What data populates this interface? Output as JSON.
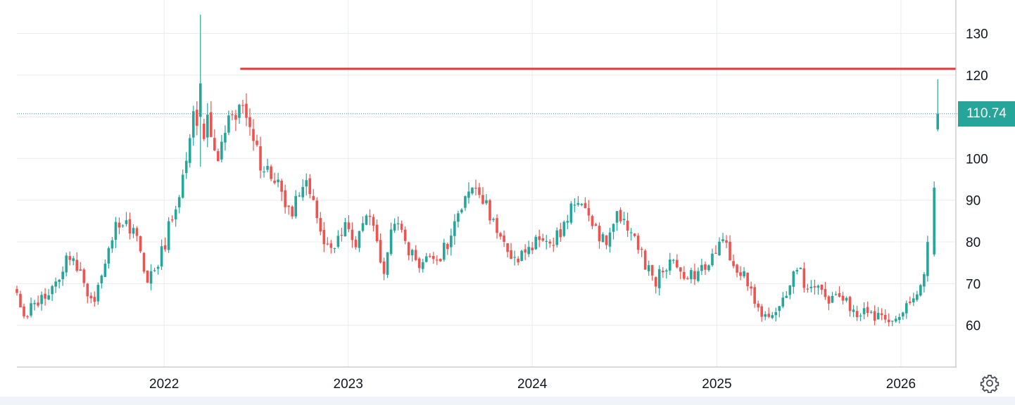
{
  "chart_data": {
    "type": "candlestick",
    "title": "",
    "xlabel": "",
    "ylabel": "",
    "x_range": [
      "2021-03-15",
      "2026-04-20"
    ],
    "y_range": [
      50,
      138
    ],
    "x_ticks": [
      {
        "label": "2022",
        "date": "2022-01-01"
      },
      {
        "label": "2023",
        "date": "2023-01-01"
      },
      {
        "label": "2024",
        "date": "2024-01-01"
      },
      {
        "label": "2025",
        "date": "2025-01-01"
      },
      {
        "label": "2026",
        "date": "2026-01-01"
      }
    ],
    "y_ticks": [
      60,
      70,
      80,
      90,
      100,
      110,
      120,
      130
    ],
    "grid": true,
    "last_price": 110.74,
    "last_price_label": "110.74",
    "horizontal_line": {
      "value": 121.5,
      "from": "2022-06-01",
      "to": "2026-04-20"
    },
    "colors": {
      "up": "#26a69a",
      "down": "#ef5350",
      "level_line": "#e53935",
      "price_line": "#26a69a",
      "grid": "#e9ecef",
      "axis": "#b2b5be"
    },
    "path": [
      [
        "2021-03-15",
        69
      ],
      [
        "2021-04-05",
        62
      ],
      [
        "2021-05-01",
        66
      ],
      [
        "2021-06-01",
        68
      ],
      [
        "2021-06-25",
        75
      ],
      [
        "2021-07-10",
        77
      ],
      [
        "2021-08-01",
        70
      ],
      [
        "2021-08-20",
        65
      ],
      [
        "2021-09-10",
        75
      ],
      [
        "2021-10-01",
        83
      ],
      [
        "2021-10-20",
        86
      ],
      [
        "2021-11-15",
        80
      ],
      [
        "2021-12-05",
        69
      ],
      [
        "2021-12-25",
        75
      ],
      [
        "2022-01-10",
        80
      ],
      [
        "2022-02-01",
        90
      ],
      [
        "2022-02-20",
        97
      ],
      [
        "2022-03-08",
        113
      ],
      [
        "2022-03-20",
        103
      ],
      [
        "2022-04-05",
        110
      ],
      [
        "2022-04-25",
        100
      ],
      [
        "2022-05-15",
        110
      ],
      [
        "2022-06-01",
        108
      ],
      [
        "2022-06-12",
        115
      ],
      [
        "2022-06-22",
        110
      ],
      [
        "2022-07-05",
        106
      ],
      [
        "2022-07-20",
        98
      ],
      [
        "2022-08-05",
        97
      ],
      [
        "2022-08-25",
        93
      ],
      [
        "2022-09-15",
        86
      ],
      [
        "2022-10-01",
        92
      ],
      [
        "2022-10-15",
        96
      ],
      [
        "2022-11-01",
        88
      ],
      [
        "2022-11-20",
        81
      ],
      [
        "2022-12-10",
        79
      ],
      [
        "2023-01-05",
        84
      ],
      [
        "2023-01-25",
        80
      ],
      [
        "2023-02-15",
        87
      ],
      [
        "2023-03-05",
        80
      ],
      [
        "2023-03-20",
        73
      ],
      [
        "2023-04-10",
        86
      ],
      [
        "2023-04-30",
        80
      ],
      [
        "2023-05-25",
        74
      ],
      [
        "2023-06-15",
        76
      ],
      [
        "2023-07-05",
        76
      ],
      [
        "2023-07-25",
        80
      ],
      [
        "2023-08-20",
        87
      ],
      [
        "2023-09-10",
        93
      ],
      [
        "2023-09-30",
        91
      ],
      [
        "2023-10-20",
        86
      ],
      [
        "2023-11-15",
        80
      ],
      [
        "2023-12-05",
        75
      ],
      [
        "2024-01-01",
        78
      ],
      [
        "2024-01-25",
        81
      ],
      [
        "2024-02-20",
        80
      ],
      [
        "2024-03-15",
        84
      ],
      [
        "2024-04-05",
        91
      ],
      [
        "2024-04-25",
        86
      ],
      [
        "2024-05-15",
        82
      ],
      [
        "2024-06-05",
        80
      ],
      [
        "2024-06-25",
        86
      ],
      [
        "2024-07-20",
        82
      ],
      [
        "2024-08-15",
        76
      ],
      [
        "2024-09-05",
        70
      ],
      [
        "2024-09-25",
        74
      ],
      [
        "2024-10-15",
        75
      ],
      [
        "2024-11-10",
        72
      ],
      [
        "2024-12-05",
        73
      ],
      [
        "2025-01-01",
        76
      ],
      [
        "2025-01-20",
        81
      ],
      [
        "2025-02-10",
        75
      ],
      [
        "2025-03-05",
        72
      ],
      [
        "2025-03-30",
        64
      ],
      [
        "2025-04-20",
        62
      ],
      [
        "2025-05-10",
        65
      ],
      [
        "2025-06-01",
        68
      ],
      [
        "2025-06-20",
        76
      ],
      [
        "2025-07-05",
        67
      ],
      [
        "2025-07-25",
        69
      ],
      [
        "2025-08-20",
        66
      ],
      [
        "2025-09-10",
        68
      ],
      [
        "2025-10-05",
        63
      ],
      [
        "2025-10-30",
        63
      ],
      [
        "2025-11-25",
        62
      ],
      [
        "2025-12-15",
        60
      ],
      [
        "2026-01-05",
        61
      ],
      [
        "2026-01-25",
        66
      ],
      [
        "2026-02-15",
        70
      ],
      [
        "2026-02-25",
        73
      ],
      [
        "2026-03-01",
        77
      ],
      [
        "2026-03-08",
        94
      ],
      [
        "2026-03-15",
        110.74
      ]
    ],
    "explicit_candles": [
      {
        "date": "2022-03-14",
        "open": 110,
        "high": 134.5,
        "low": 98,
        "close": 118
      },
      {
        "date": "2026-03-08",
        "open": 77,
        "high": 94.5,
        "low": 76.5,
        "close": 93
      },
      {
        "date": "2026-03-15",
        "open": 107,
        "high": 119,
        "low": 106.5,
        "close": 110.74
      }
    ]
  }
}
